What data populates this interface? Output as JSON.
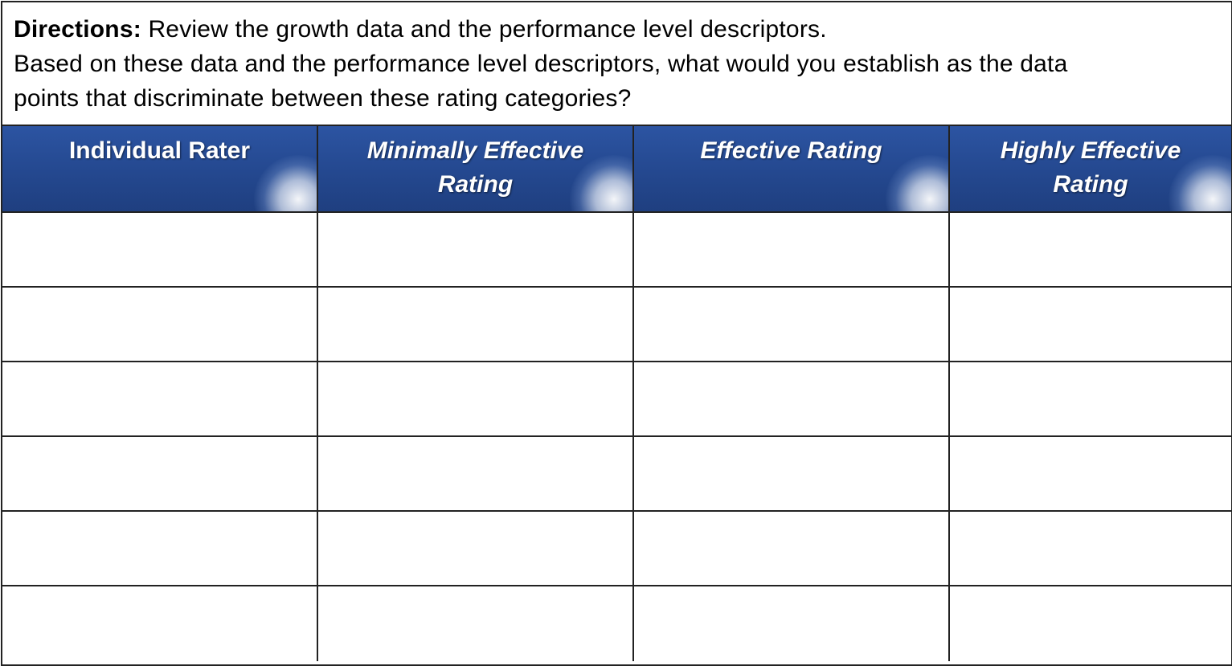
{
  "directions": {
    "label": "Directions:",
    "line1": " Review the growth data and the performance level descriptors.",
    "line2": "Based on these data and the performance level descriptors, what would you establish as the data",
    "line3": "points that discriminate between these rating categories?"
  },
  "table": {
    "headers": [
      {
        "line1": "Individual Rater",
        "line2": ""
      },
      {
        "line1": "Minimally Effective",
        "line2": "Rating"
      },
      {
        "line1": "Effective Rating",
        "line2": ""
      },
      {
        "line1": "Highly Effective",
        "line2": "Rating"
      }
    ],
    "row_count": 6,
    "rows": [
      [
        "",
        "",
        "",
        ""
      ],
      [
        "",
        "",
        "",
        ""
      ],
      [
        "",
        "",
        "",
        ""
      ],
      [
        "",
        "",
        "",
        ""
      ],
      [
        "",
        "",
        "",
        ""
      ],
      [
        "",
        "",
        "",
        ""
      ]
    ]
  },
  "colors": {
    "header_bg": "#24488f",
    "header_text": "#ffffff",
    "border": "#222222"
  }
}
